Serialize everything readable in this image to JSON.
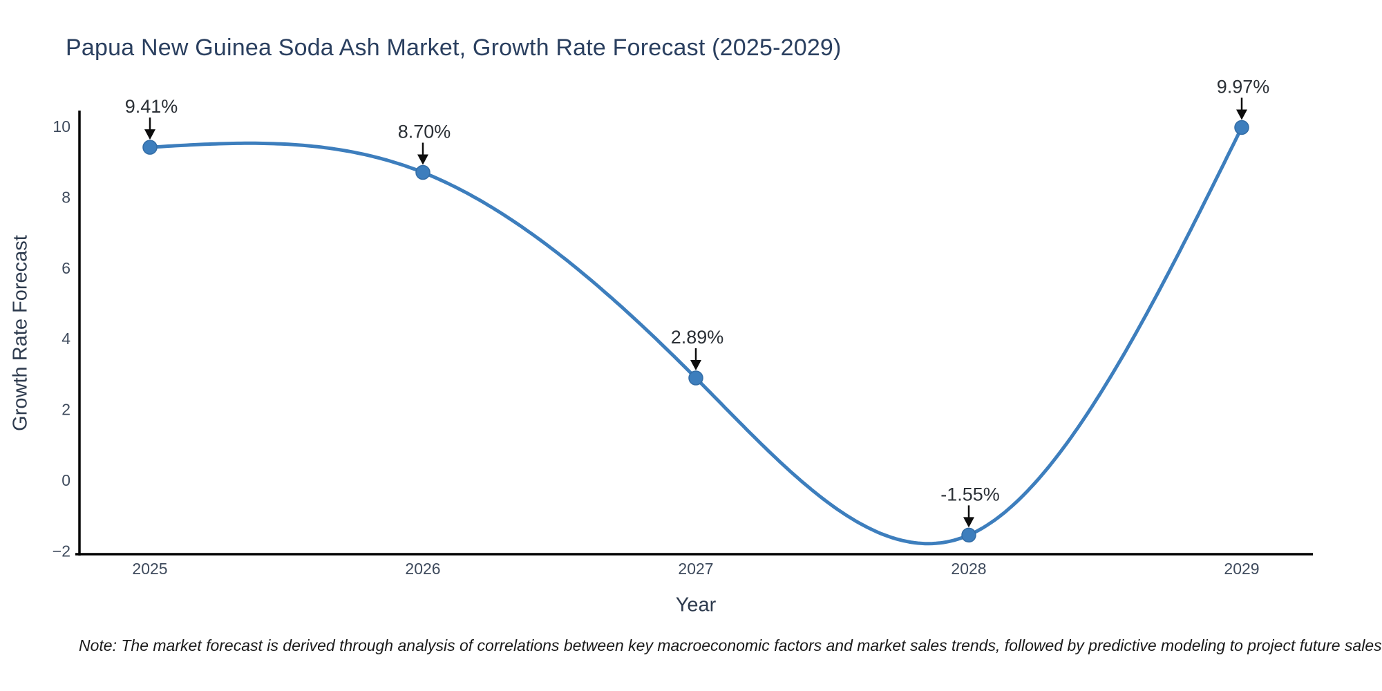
{
  "title": "Papua New Guinea Soda Ash Market, Growth Rate Forecast (2025-2029)",
  "note": "Note: The market forecast is derived through analysis of correlations between key macroeconomic factors and market sales trends, followed by predictive modeling to project future sales",
  "chart_data": {
    "type": "line",
    "line_shape": "spline",
    "grid": false,
    "legend": "none",
    "x": [
      2025,
      2026,
      2027,
      2028,
      2029
    ],
    "values": [
      9.41,
      8.7,
      2.89,
      -1.55,
      9.97
    ],
    "point_labels": [
      "9.41%",
      "8.70%",
      "2.89%",
      "-1.55%",
      "9.97%"
    ],
    "x_tick_labels": [
      "2025",
      "2026",
      "2027",
      "2028",
      "2029"
    ],
    "y_ticks": [
      10,
      8,
      6,
      4,
      2,
      0,
      -2
    ],
    "y_tick_labels": [
      "10",
      "8",
      "6",
      "4",
      "2",
      "0",
      "−2"
    ],
    "xlabel": "Year",
    "ylabel": "Growth Rate Forecast",
    "ylim": [
      -2.1,
      10.45
    ],
    "colors": {
      "line": "#3d7ebd",
      "marker": "#3d7ebd",
      "marker_edge": "#336da6",
      "axis": "#000000",
      "tick_text": "#3e4a5c",
      "annotation_text": "#2b3036",
      "arrow": "#0d0d0d"
    }
  }
}
